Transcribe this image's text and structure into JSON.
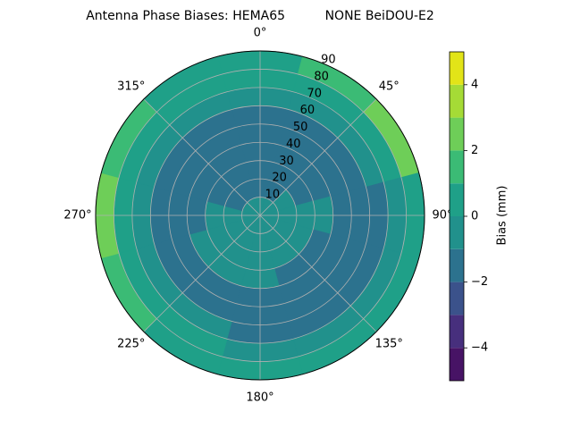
{
  "chart_data": {
    "type": "polar-contour",
    "title": "Antenna Phase Biases: HEMA65          NONE BeiDOU-E2",
    "azimuths": [
      0,
      30,
      60,
      90,
      120,
      150,
      180,
      210,
      240,
      270,
      300,
      330
    ],
    "zenith_bins": [
      0,
      10,
      20,
      30,
      40,
      50,
      60,
      70,
      80,
      90
    ],
    "values": [
      [
        -0.5,
        -1.5,
        -1.5,
        -1.5,
        -1.5,
        -1.5,
        -0.5,
        0.5,
        0.5
      ],
      [
        -0.5,
        -1.5,
        -1.5,
        -1.5,
        -1.5,
        -1.5,
        -0.5,
        0.5,
        1.5
      ],
      [
        -0.5,
        -0.5,
        -1.5,
        -1.5,
        -1.5,
        -1.5,
        -0.5,
        0.5,
        2.5
      ],
      [
        -0.5,
        -0.5,
        -0.5,
        -0.5,
        -1.5,
        -1.5,
        -1.5,
        -0.5,
        0.5
      ],
      [
        -0.5,
        -0.5,
        -0.5,
        -1.5,
        -1.5,
        -1.5,
        -1.5,
        -0.5,
        0.5
      ],
      [
        -0.5,
        -0.5,
        -0.5,
        -1.5,
        -1.5,
        -1.5,
        -1.5,
        -0.5,
        0.5
      ],
      [
        -0.5,
        -0.5,
        -0.5,
        -0.5,
        -1.5,
        -1.5,
        -1.5,
        -0.5,
        0.5
      ],
      [
        -0.5,
        -0.5,
        -0.5,
        -0.5,
        -1.5,
        -1.5,
        -0.5,
        0.5,
        0.5
      ],
      [
        -0.5,
        -0.5,
        -0.5,
        -0.5,
        -1.5,
        -1.5,
        -0.5,
        0.5,
        1.5
      ],
      [
        -0.5,
        -0.5,
        -0.5,
        -1.5,
        -1.5,
        -1.5,
        -0.5,
        0.5,
        2.5
      ],
      [
        -0.5,
        -1.5,
        -1.5,
        -1.5,
        -1.5,
        -1.5,
        -0.5,
        0.5,
        1.5
      ],
      [
        -0.5,
        -1.5,
        -1.5,
        -1.5,
        -1.5,
        -1.5,
        -0.5,
        0.5,
        0.5
      ]
    ],
    "rlim": [
      0,
      90
    ],
    "rticks": [
      10,
      20,
      30,
      40,
      50,
      60,
      70,
      80,
      90
    ],
    "thetaticks": [
      {
        "value": 0,
        "label": "0°"
      },
      {
        "value": 45,
        "label": "45°"
      },
      {
        "value": 90,
        "label": "90°"
      },
      {
        "value": 135,
        "label": "135°"
      },
      {
        "value": 180,
        "label": "180°"
      },
      {
        "value": 225,
        "label": "225°"
      },
      {
        "value": 270,
        "label": "270°"
      },
      {
        "value": 315,
        "label": "315°"
      }
    ],
    "grid": true,
    "levels": [
      -5,
      -4,
      -3,
      -2,
      -1,
      0,
      1,
      2,
      3,
      4,
      5
    ],
    "colors": [
      "#471365",
      "#472f7d",
      "#3b528b",
      "#2c728e",
      "#21918c",
      "#1fa088",
      "#3bbb75",
      "#6ece58",
      "#a5db36",
      "#e2e418"
    ],
    "colorbar_label": "Bias (mm)",
    "colorbar_ticks": [
      {
        "value": -4,
        "label": "−4"
      },
      {
        "value": -2,
        "label": "−2"
      },
      0,
      2,
      4
    ]
  }
}
